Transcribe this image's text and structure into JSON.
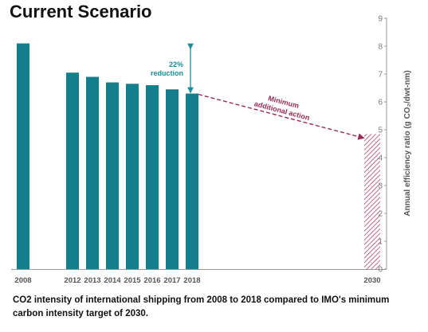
{
  "title": "Current Scenario",
  "caption": "CO2 intensity of international shipping from 2008 to 2018 compared to IMO's minimum carbon intensity target of 2030.",
  "chart_data": {
    "type": "bar",
    "categories": [
      "2008",
      "2012",
      "2013",
      "2014",
      "2015",
      "2016",
      "2017",
      "2018",
      "2030"
    ],
    "values": [
      8.1,
      7.05,
      6.9,
      6.7,
      6.65,
      6.6,
      6.45,
      6.3,
      4.85
    ],
    "target_year": "2030",
    "ylabel": "Annual efficiency ratio (g CO₂/dwt-nm)",
    "ylim": [
      0,
      9
    ],
    "yticks": [
      "0",
      "1",
      "2",
      "3",
      "4",
      "5",
      "6",
      "7",
      "8",
      "9"
    ],
    "y_axis_side": "right",
    "grid": false,
    "colors": {
      "bar": "#137f8c",
      "target_hatch": "#b0446f",
      "arrow_teal": "#1e8b98",
      "dashed": "#9a2a55"
    },
    "annotations": {
      "reduction": [
        "22%",
        "reduction"
      ],
      "additional": [
        "Minimum",
        "additional action"
      ]
    }
  }
}
